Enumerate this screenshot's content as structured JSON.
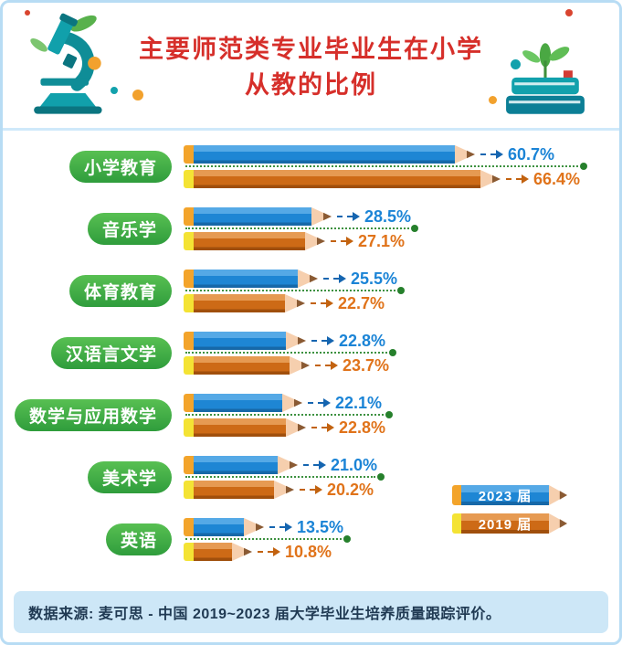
{
  "header": {
    "title_line1": "主要师范类专业毕业生在小学",
    "title_line2": "从教的比例",
    "title_color": "#d62f2a"
  },
  "legend": {
    "items": [
      {
        "label": "2023 届",
        "body_color": "#1e86d4",
        "cap_color": "#f3a42b"
      },
      {
        "label": "2019 届",
        "body_color": "#cd6a16",
        "cap_color": "#f4e334"
      }
    ]
  },
  "footer": {
    "text": "数据来源: 麦可思 - 中国 2019~2023 届大学毕业生培养质量跟踪评价。"
  },
  "chart_data": {
    "type": "bar",
    "orientation": "horizontal",
    "title": "主要师范类专业毕业生在小学从教的比例",
    "unit": "percent",
    "categories": [
      "小学教育",
      "音乐学",
      "体育教育",
      "汉语言文学",
      "数学与应用数学",
      "美术学",
      "英语"
    ],
    "series": [
      {
        "name": "2023 届",
        "color": "#1e86d4",
        "cap_color": "#f3a42b",
        "values": [
          60.7,
          28.5,
          25.5,
          22.8,
          22.1,
          21.0,
          13.5
        ]
      },
      {
        "name": "2019 届",
        "color": "#cd6a16",
        "cap_color": "#f4e334",
        "values": [
          66.4,
          27.1,
          22.7,
          23.7,
          22.8,
          20.2,
          10.8
        ]
      }
    ],
    "value_label_format": "{value}%",
    "value_label_colors": [
      "#1b84d6",
      "#e0731a"
    ],
    "legend_position": "bottom-right",
    "grid": false,
    "xlim": [
      0,
      70
    ]
  },
  "colors": {
    "category_pill": "#3fa33f",
    "leader_line": "#3d9140",
    "leader_dot": "#26802c",
    "pencil_tip": "#f6cfae",
    "frame_border": "#b8dcf4",
    "footer_bg": "#cde7f7"
  }
}
